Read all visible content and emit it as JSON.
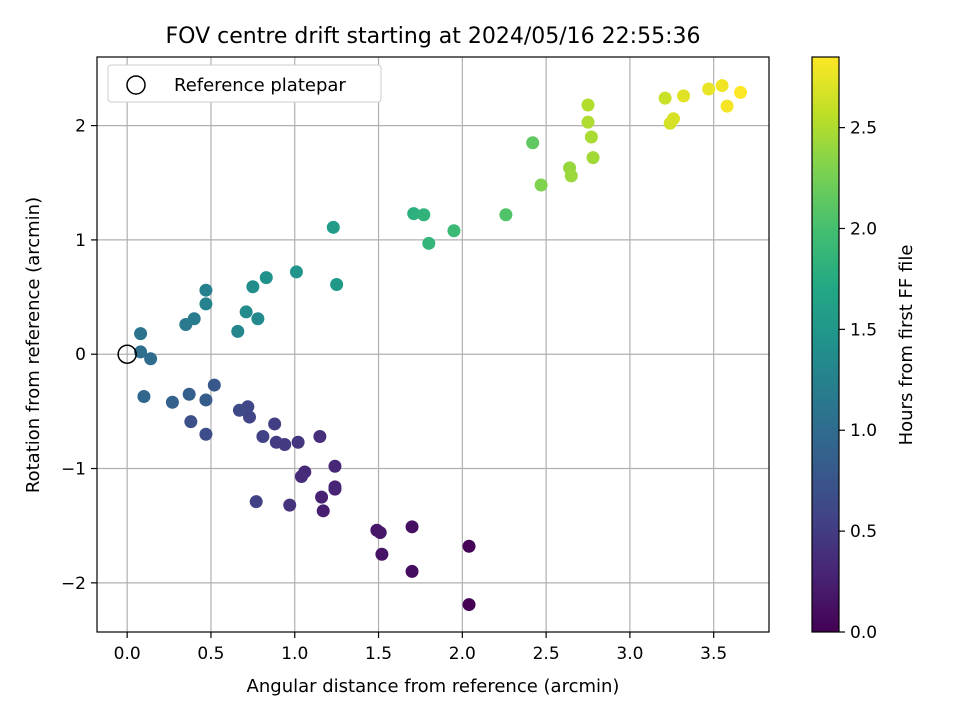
{
  "chart_data": {
    "type": "scatter",
    "title": "FOV centre drift starting at 2024/05/16 22:55:36",
    "xlabel": "Angular distance from reference (arcmin)",
    "ylabel": "Rotation from reference (arcmin)",
    "xlim": [
      -0.18,
      3.83
    ],
    "ylim": [
      -2.43,
      2.6
    ],
    "xticks": [
      0.0,
      0.5,
      1.0,
      1.5,
      2.0,
      2.5,
      3.0,
      3.5
    ],
    "xtick_labels": [
      "0.0",
      "0.5",
      "1.0",
      "1.5",
      "2.0",
      "2.5",
      "3.0",
      "3.5"
    ],
    "yticks": [
      -2,
      -1,
      0,
      1,
      2
    ],
    "ytick_labels": [
      "−2",
      "−1",
      "0",
      "1",
      "2"
    ],
    "grid": true,
    "colormap": "viridis",
    "colorbar": {
      "label": "Hours from first FF file",
      "range": [
        0.0,
        2.85
      ],
      "ticks": [
        0.0,
        0.5,
        1.0,
        1.5,
        2.0,
        2.5
      ],
      "tick_labels": [
        "0.0",
        "0.5",
        "1.0",
        "1.5",
        "2.0",
        "2.5"
      ]
    },
    "legend": {
      "placement": "top-left",
      "entries": [
        "Reference platepar"
      ]
    },
    "reference_point": {
      "x": 0.0,
      "y": 0.0
    },
    "points": [
      {
        "x": 2.04,
        "y": -2.19,
        "c": 0.0
      },
      {
        "x": 2.04,
        "y": -1.68,
        "c": 0.02
      },
      {
        "x": 1.7,
        "y": -1.9,
        "c": 0.1
      },
      {
        "x": 1.7,
        "y": -1.51,
        "c": 0.12
      },
      {
        "x": 1.52,
        "y": -1.75,
        "c": 0.15
      },
      {
        "x": 1.51,
        "y": -1.56,
        "c": 0.17
      },
      {
        "x": 1.49,
        "y": -1.54,
        "c": 0.19
      },
      {
        "x": 1.17,
        "y": -1.37,
        "c": 0.24
      },
      {
        "x": 1.16,
        "y": -1.25,
        "c": 0.26
      },
      {
        "x": 1.24,
        "y": -1.18,
        "c": 0.28
      },
      {
        "x": 1.24,
        "y": -1.16,
        "c": 0.3
      },
      {
        "x": 1.24,
        "y": -0.98,
        "c": 0.32
      },
      {
        "x": 1.06,
        "y": -1.03,
        "c": 0.34
      },
      {
        "x": 1.04,
        "y": -1.07,
        "c": 0.36
      },
      {
        "x": 1.15,
        "y": -0.72,
        "c": 0.38
      },
      {
        "x": 0.97,
        "y": -1.32,
        "c": 0.42
      },
      {
        "x": 1.02,
        "y": -0.77,
        "c": 0.45
      },
      {
        "x": 0.94,
        "y": -0.79,
        "c": 0.48
      },
      {
        "x": 0.89,
        "y": -0.77,
        "c": 0.5
      },
      {
        "x": 0.88,
        "y": -0.61,
        "c": 0.52
      },
      {
        "x": 0.77,
        "y": -1.29,
        "c": 0.54
      },
      {
        "x": 0.81,
        "y": -0.72,
        "c": 0.56
      },
      {
        "x": 0.73,
        "y": -0.55,
        "c": 0.58
      },
      {
        "x": 0.72,
        "y": -0.46,
        "c": 0.6
      },
      {
        "x": 0.67,
        "y": -0.49,
        "c": 0.63
      },
      {
        "x": 0.47,
        "y": -0.7,
        "c": 0.66
      },
      {
        "x": 0.38,
        "y": -0.59,
        "c": 0.7
      },
      {
        "x": 0.52,
        "y": -0.27,
        "c": 0.78
      },
      {
        "x": 0.47,
        "y": -0.4,
        "c": 0.82
      },
      {
        "x": 0.37,
        "y": -0.35,
        "c": 0.86
      },
      {
        "x": 0.27,
        "y": -0.42,
        "c": 0.9
      },
      {
        "x": 0.1,
        "y": -0.37,
        "c": 0.95
      },
      {
        "x": 0.14,
        "y": -0.04,
        "c": 1.0
      },
      {
        "x": 0.08,
        "y": 0.02,
        "c": 1.04
      },
      {
        "x": 0.08,
        "y": 0.18,
        "c": 1.08
      },
      {
        "x": 0.35,
        "y": 0.26,
        "c": 1.15
      },
      {
        "x": 0.4,
        "y": 0.31,
        "c": 1.19
      },
      {
        "x": 0.47,
        "y": 0.56,
        "c": 1.23
      },
      {
        "x": 0.47,
        "y": 0.44,
        "c": 1.26
      },
      {
        "x": 0.66,
        "y": 0.2,
        "c": 1.3
      },
      {
        "x": 0.78,
        "y": 0.31,
        "c": 1.33
      },
      {
        "x": 0.71,
        "y": 0.37,
        "c": 1.36
      },
      {
        "x": 0.75,
        "y": 0.59,
        "c": 1.39
      },
      {
        "x": 0.83,
        "y": 0.67,
        "c": 1.42
      },
      {
        "x": 1.01,
        "y": 0.72,
        "c": 1.46
      },
      {
        "x": 1.25,
        "y": 0.61,
        "c": 1.52
      },
      {
        "x": 1.23,
        "y": 1.11,
        "c": 1.56
      },
      {
        "x": 1.71,
        "y": 1.23,
        "c": 1.8
      },
      {
        "x": 1.77,
        "y": 1.22,
        "c": 1.84
      },
      {
        "x": 1.8,
        "y": 0.97,
        "c": 1.87
      },
      {
        "x": 1.95,
        "y": 1.08,
        "c": 1.92
      },
      {
        "x": 2.26,
        "y": 1.22,
        "c": 2.06
      },
      {
        "x": 2.42,
        "y": 1.85,
        "c": 2.14
      },
      {
        "x": 2.47,
        "y": 1.48,
        "c": 2.3
      },
      {
        "x": 2.64,
        "y": 1.63,
        "c": 2.4
      },
      {
        "x": 2.65,
        "y": 1.56,
        "c": 2.42
      },
      {
        "x": 2.78,
        "y": 1.72,
        "c": 2.45
      },
      {
        "x": 2.77,
        "y": 1.9,
        "c": 2.48
      },
      {
        "x": 2.75,
        "y": 2.03,
        "c": 2.5
      },
      {
        "x": 2.75,
        "y": 2.18,
        "c": 2.52
      },
      {
        "x": 3.21,
        "y": 2.24,
        "c": 2.62
      },
      {
        "x": 3.24,
        "y": 2.02,
        "c": 2.66
      },
      {
        "x": 3.26,
        "y": 2.06,
        "c": 2.68
      },
      {
        "x": 3.32,
        "y": 2.26,
        "c": 2.72
      },
      {
        "x": 3.47,
        "y": 2.32,
        "c": 2.76
      },
      {
        "x": 3.55,
        "y": 2.35,
        "c": 2.79
      },
      {
        "x": 3.58,
        "y": 2.17,
        "c": 2.81
      },
      {
        "x": 3.66,
        "y": 2.29,
        "c": 2.84
      }
    ]
  }
}
